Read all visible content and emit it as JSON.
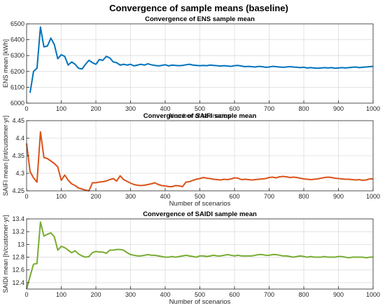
{
  "figure": {
    "title": "Convergence of sample means (baseline)"
  },
  "chart_data": [
    {
      "type": "line",
      "title": "Convergence of ENS sample mean",
      "xlabel": "Number of scenarios",
      "ylabel": "ENS mean [kWh]",
      "xlim": [
        0,
        1000
      ],
      "ylim": [
        6000,
        6500
      ],
      "xticks": [
        0,
        100,
        200,
        300,
        400,
        500,
        600,
        700,
        800,
        900,
        1000
      ],
      "yticks": [
        6000,
        6100,
        6200,
        6300,
        6400,
        6500
      ],
      "ytick_labels": [
        "6000",
        "6100",
        "6200",
        "6300",
        "6400",
        "6500"
      ],
      "grid": true,
      "color": "#0072BD",
      "x": [
        10,
        20,
        30,
        40,
        50,
        60,
        70,
        80,
        90,
        100,
        110,
        120,
        130,
        140,
        150,
        160,
        170,
        180,
        190,
        200,
        210,
        220,
        230,
        240,
        250,
        260,
        270,
        280,
        290,
        300,
        310,
        320,
        330,
        340,
        350,
        360,
        370,
        380,
        390,
        400,
        410,
        420,
        430,
        440,
        450,
        460,
        470,
        480,
        490,
        500,
        510,
        520,
        530,
        540,
        550,
        560,
        570,
        580,
        590,
        600,
        610,
        620,
        630,
        640,
        650,
        660,
        670,
        680,
        690,
        700,
        710,
        720,
        730,
        740,
        750,
        760,
        770,
        780,
        790,
        800,
        810,
        820,
        830,
        840,
        850,
        860,
        870,
        880,
        890,
        900,
        910,
        920,
        930,
        940,
        950,
        960,
        970,
        980,
        990,
        1000
      ],
      "values": [
        6065,
        6200,
        6220,
        6480,
        6355,
        6360,
        6410,
        6370,
        6280,
        6305,
        6295,
        6240,
        6260,
        6245,
        6220,
        6215,
        6245,
        6270,
        6255,
        6245,
        6275,
        6270,
        6295,
        6285,
        6260,
        6255,
        6240,
        6245,
        6240,
        6245,
        6235,
        6240,
        6245,
        6240,
        6248,
        6242,
        6238,
        6235,
        6238,
        6242,
        6235,
        6240,
        6238,
        6236,
        6238,
        6242,
        6245,
        6240,
        6238,
        6236,
        6238,
        6236,
        6240,
        6238,
        6236,
        6234,
        6236,
        6234,
        6232,
        6236,
        6238,
        6234,
        6230,
        6232,
        6230,
        6228,
        6232,
        6230,
        6226,
        6228,
        6232,
        6230,
        6228,
        6226,
        6228,
        6230,
        6228,
        6226,
        6224,
        6226,
        6222,
        6224,
        6222,
        6220,
        6222,
        6224,
        6222,
        6224,
        6220,
        6222,
        6224,
        6222,
        6224,
        6226,
        6228,
        6224,
        6226,
        6228,
        6230,
        6232
      ]
    },
    {
      "type": "line",
      "title": "Convergence of SAIFI sample mean",
      "xlabel": "Number of scenarios",
      "ylabel": "SAIFI mean [int/customer·yr]",
      "xlim": [
        0,
        1000
      ],
      "ylim": [
        4.25,
        4.45
      ],
      "xticks": [
        0,
        100,
        200,
        300,
        400,
        500,
        600,
        700,
        800,
        900,
        1000
      ],
      "yticks": [
        4.25,
        4.3,
        4.35,
        4.4,
        4.45
      ],
      "ytick_labels": [
        "4.25",
        "4.3",
        "4.35",
        "4.4",
        "4.45"
      ],
      "grid": true,
      "color": "#D95319",
      "x": [
        0,
        10,
        20,
        30,
        40,
        50,
        60,
        70,
        80,
        90,
        100,
        110,
        120,
        130,
        140,
        150,
        160,
        170,
        180,
        190,
        200,
        210,
        220,
        230,
        240,
        250,
        260,
        270,
        280,
        290,
        300,
        310,
        320,
        330,
        340,
        350,
        360,
        370,
        380,
        390,
        400,
        410,
        420,
        430,
        440,
        450,
        460,
        470,
        480,
        490,
        500,
        510,
        520,
        530,
        540,
        550,
        560,
        570,
        580,
        590,
        600,
        610,
        620,
        630,
        640,
        650,
        660,
        670,
        680,
        690,
        700,
        710,
        720,
        730,
        740,
        750,
        760,
        770,
        780,
        790,
        800,
        810,
        820,
        830,
        840,
        850,
        860,
        870,
        880,
        890,
        900,
        910,
        920,
        930,
        940,
        950,
        960,
        970,
        980,
        990,
        1000
      ],
      "values": [
        4.385,
        4.305,
        4.287,
        4.275,
        4.418,
        4.345,
        4.342,
        4.335,
        4.328,
        4.318,
        4.28,
        4.295,
        4.28,
        4.27,
        4.265,
        4.258,
        4.255,
        4.252,
        4.25,
        4.273,
        4.273,
        4.275,
        4.276,
        4.278,
        4.282,
        4.285,
        4.278,
        4.293,
        4.282,
        4.277,
        4.272,
        4.268,
        4.266,
        4.265,
        4.266,
        4.268,
        4.27,
        4.273,
        4.268,
        4.265,
        4.264,
        4.262,
        4.262,
        4.265,
        4.264,
        4.262,
        4.275,
        4.276,
        4.28,
        4.283,
        4.285,
        4.288,
        4.286,
        4.285,
        4.283,
        4.282,
        4.281,
        4.283,
        4.282,
        4.284,
        4.287,
        4.286,
        4.282,
        4.283,
        4.282,
        4.281,
        4.282,
        4.283,
        4.284,
        4.285,
        4.288,
        4.289,
        4.287,
        4.29,
        4.291,
        4.29,
        4.288,
        4.289,
        4.288,
        4.286,
        4.284,
        4.283,
        4.282,
        4.283,
        4.284,
        4.286,
        4.288,
        4.289,
        4.288,
        4.286,
        4.285,
        4.284,
        4.283,
        4.283,
        4.282,
        4.281,
        4.282,
        4.28,
        4.281,
        4.284,
        4.284
      ]
    },
    {
      "type": "line",
      "title": "Convergence of SAIDI sample mean",
      "xlabel": "Number of scenarios",
      "ylabel": "SAIDI mean [h/customer·yr]",
      "xlim": [
        0,
        1000
      ],
      "ylim": [
        12.3,
        13.4
      ],
      "xticks": [
        0,
        100,
        200,
        300,
        400,
        500,
        600,
        700,
        800,
        900,
        1000
      ],
      "yticks": [
        12.4,
        12.6,
        12.8,
        13,
        13.2,
        13.4
      ],
      "ytick_labels": [
        "12.4",
        "12.6",
        "12.8",
        "13",
        "13.2",
        "13.4"
      ],
      "grid": true,
      "color": "#77AC30",
      "x": [
        0,
        10,
        20,
        30,
        40,
        50,
        60,
        70,
        80,
        90,
        100,
        110,
        120,
        130,
        140,
        150,
        160,
        170,
        180,
        190,
        200,
        210,
        220,
        230,
        240,
        250,
        260,
        270,
        280,
        290,
        300,
        310,
        320,
        330,
        340,
        350,
        360,
        370,
        380,
        390,
        400,
        410,
        420,
        430,
        440,
        450,
        460,
        470,
        480,
        490,
        500,
        510,
        520,
        530,
        540,
        550,
        560,
        570,
        580,
        590,
        600,
        610,
        620,
        630,
        640,
        650,
        660,
        670,
        680,
        690,
        700,
        710,
        720,
        730,
        740,
        750,
        760,
        770,
        780,
        790,
        800,
        810,
        820,
        830,
        840,
        850,
        860,
        870,
        880,
        890,
        900,
        910,
        920,
        930,
        940,
        950,
        960,
        970,
        980,
        990,
        1000
      ],
      "values": [
        12.3,
        12.5,
        12.69,
        12.7,
        13.35,
        13.13,
        13.16,
        13.18,
        13.12,
        12.91,
        12.97,
        12.95,
        12.91,
        12.87,
        12.9,
        12.85,
        12.82,
        12.8,
        12.81,
        12.87,
        12.89,
        12.88,
        12.88,
        12.86,
        12.91,
        12.91,
        12.92,
        12.92,
        12.91,
        12.87,
        12.84,
        12.83,
        12.82,
        12.82,
        12.83,
        12.84,
        12.83,
        12.83,
        12.82,
        12.81,
        12.8,
        12.8,
        12.81,
        12.8,
        12.81,
        12.82,
        12.83,
        12.82,
        12.81,
        12.8,
        12.82,
        12.82,
        12.81,
        12.82,
        12.83,
        12.82,
        12.82,
        12.83,
        12.84,
        12.83,
        12.82,
        12.83,
        12.82,
        12.82,
        12.82,
        12.82,
        12.83,
        12.84,
        12.84,
        12.83,
        12.83,
        12.84,
        12.84,
        12.83,
        12.82,
        12.82,
        12.81,
        12.8,
        12.81,
        12.82,
        12.81,
        12.8,
        12.81,
        12.8,
        12.8,
        12.8,
        12.81,
        12.8,
        12.8,
        12.8,
        12.81,
        12.81,
        12.8,
        12.79,
        12.8,
        12.8,
        12.8,
        12.8,
        12.79,
        12.8,
        12.8
      ]
    }
  ]
}
